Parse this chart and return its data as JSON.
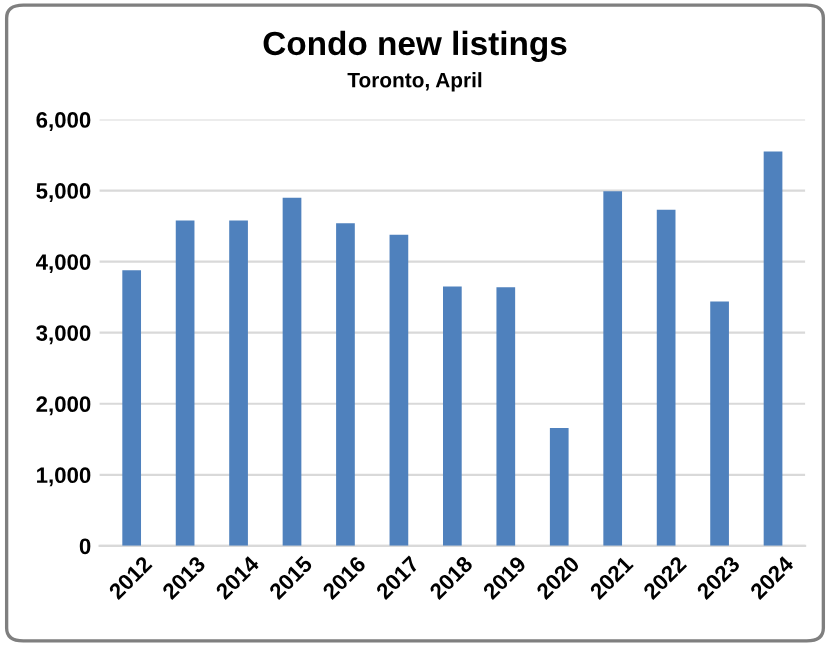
{
  "chart_data": {
    "type": "bar",
    "title": "Condo new listings",
    "subtitle": "Toronto, April",
    "categories": [
      "2012",
      "2013",
      "2014",
      "2015",
      "2016",
      "2017",
      "2018",
      "2019",
      "2020",
      "2021",
      "2022",
      "2023",
      "2024"
    ],
    "values": [
      3880,
      4580,
      4580,
      4900,
      4540,
      4380,
      3650,
      3640,
      1660,
      4990,
      4730,
      3440,
      5550
    ],
    "color": "#4f81bd",
    "ylim": [
      0,
      6000
    ],
    "yticks": [
      {
        "value": 0,
        "label": "0"
      },
      {
        "value": 1000,
        "label": "1,000"
      },
      {
        "value": 2000,
        "label": "2,000"
      },
      {
        "value": 3000,
        "label": "3,000"
      },
      {
        "value": 4000,
        "label": "4,000"
      },
      {
        "value": 5000,
        "label": "5,000"
      },
      {
        "value": 6000,
        "label": "6,000"
      }
    ],
    "grid": "y",
    "legend": false
  }
}
